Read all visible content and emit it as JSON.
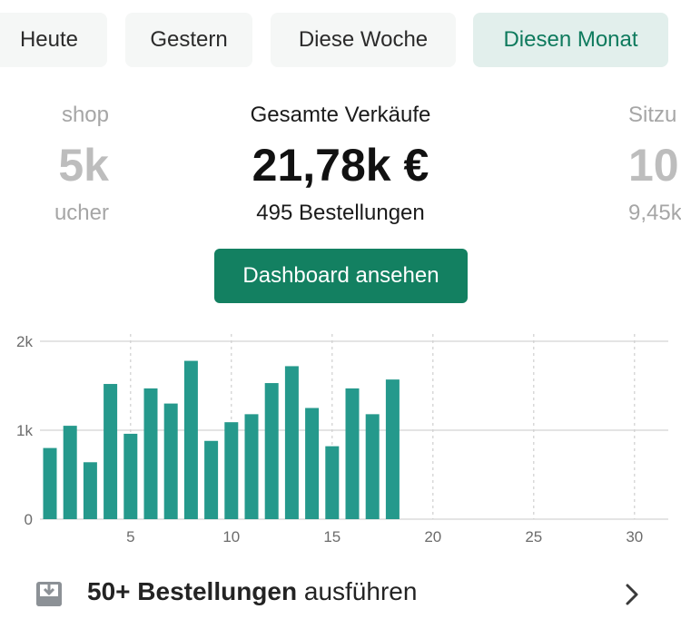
{
  "tabs": [
    {
      "label": "Heute",
      "active": false
    },
    {
      "label": "Gestern",
      "active": false
    },
    {
      "label": "Diese Woche",
      "active": false
    },
    {
      "label": "Diesen Monat",
      "active": true
    }
  ],
  "metrics": {
    "left": {
      "label": "shop",
      "value": "5k",
      "sub": "ucher"
    },
    "center": {
      "label": "Gesamte Verkäufe",
      "value": "21,78k €",
      "sub": "495 Bestellungen"
    },
    "right": {
      "label": "Sitzu",
      "value": "10,",
      "sub": "9,45k"
    }
  },
  "dashboard_button": "Dashboard ansehen",
  "chart_data": {
    "type": "bar",
    "x": [
      1,
      2,
      3,
      4,
      5,
      6,
      7,
      8,
      9,
      10,
      11,
      12,
      13,
      14,
      15,
      16,
      17,
      18
    ],
    "values": [
      800,
      1050,
      640,
      1520,
      960,
      1470,
      1300,
      1780,
      880,
      1090,
      1180,
      1530,
      1720,
      1250,
      820,
      1470,
      1180,
      1570
    ],
    "x_range": [
      1,
      31
    ],
    "x_ticks": [
      "5",
      "10",
      "15",
      "20",
      "25",
      "30"
    ],
    "x_tick_values": [
      5,
      10,
      15,
      20,
      25,
      30
    ],
    "y_ticks": [
      "2k",
      "1k",
      "0"
    ],
    "y_tick_values": [
      2000,
      1000,
      0
    ],
    "ylim": [
      0,
      2000
    ],
    "color": "#25998c",
    "grid": true
  },
  "orders": {
    "count_label": "50+ Bestellungen",
    "action": "ausführen"
  },
  "colors": {
    "accent": "#138061",
    "active_tab_bg": "#e2efec",
    "bar": "#25998c"
  }
}
